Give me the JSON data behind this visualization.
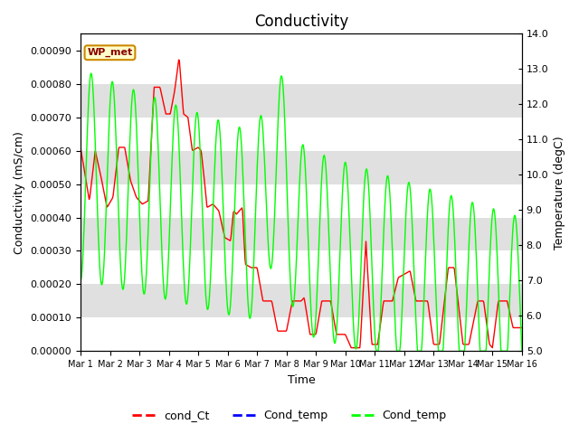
{
  "title": "Conductivity",
  "xlabel": "Time",
  "ylabel_left": "Conductivity (mS/cm)",
  "ylabel_right": "Temperature (degC)",
  "ylim_left": [
    0,
    0.00095
  ],
  "ylim_right": [
    5.0,
    14.0
  ],
  "yticks_left": [
    0.0,
    0.0001,
    0.0002,
    0.0003,
    0.0004,
    0.0005,
    0.0006,
    0.0007,
    0.0008,
    0.0009
  ],
  "yticks_right": [
    5.0,
    6.0,
    7.0,
    8.0,
    9.0,
    10.0,
    11.0,
    12.0,
    13.0,
    14.0
  ],
  "xtick_labels": [
    "Mar 1",
    "Mar 2",
    "Mar 3",
    "Mar 4",
    "Mar 5",
    "Mar 6",
    "Mar 7",
    "Mar 8",
    "Mar 9",
    "Mar 10",
    "Mar 11",
    "Mar 12",
    "Mar 13",
    "Mar 14",
    "Mar 15",
    "Mar 16"
  ],
  "legend_labels": [
    "cond_Ct",
    "Cond_temp",
    "Cond_temp"
  ],
  "legend_colors": [
    "red",
    "blue",
    "lime"
  ],
  "wp_met_label": "WP_met",
  "wp_met_box_color": "#ffffcc",
  "wp_met_box_edge": "#cc8800",
  "band_colors": [
    "#ffffff",
    "#e0e0e0"
  ],
  "title_fontsize": 12,
  "axis_fontsize": 9,
  "tick_fontsize": 8
}
